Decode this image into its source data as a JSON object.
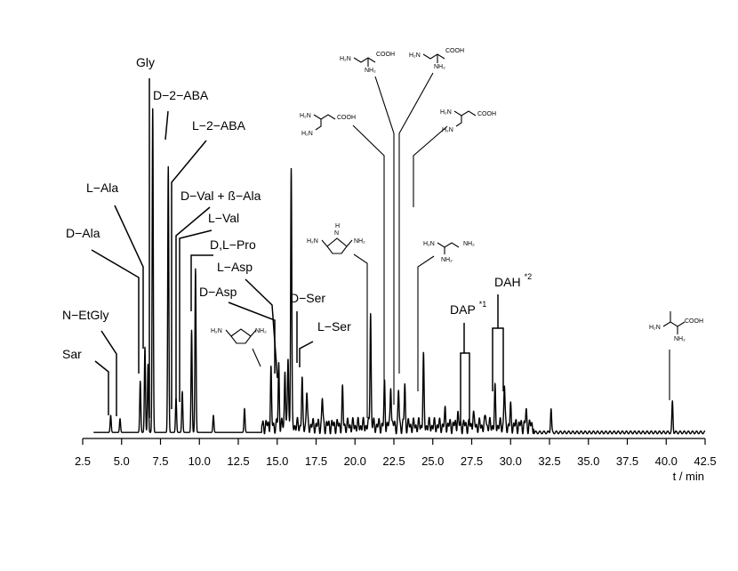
{
  "chart_data": {
    "type": "line",
    "x_axis": {
      "label": "t / min",
      "range": [
        2.5,
        42.5
      ],
      "ticks": [
        "2.5",
        "5.0",
        "7.5",
        "10.0",
        "12.5",
        "15.0",
        "17.5",
        "20.0",
        "22.5",
        "25.0",
        "27.5",
        "30.0",
        "32.5",
        "35.0",
        "37.5",
        "40.0",
        "42.5"
      ]
    },
    "y_axis": {
      "label": "",
      "ticks_shown": false,
      "range": [
        0,
        1
      ]
    },
    "grid": false,
    "legend": "none",
    "peaks": [
      {
        "t": 4.3,
        "h": 0.05
      },
      {
        "t": 4.9,
        "h": 0.04
      },
      {
        "t": 6.2,
        "h": 0.15
      },
      {
        "t": 6.5,
        "h": 0.25
      },
      {
        "t": 6.7,
        "h": 0.2
      },
      {
        "t": 7.0,
        "h": 0.95
      },
      {
        "t": 8.0,
        "h": 0.78
      },
      {
        "t": 8.5,
        "h": 0.1
      },
      {
        "t": 8.9,
        "h": 0.12
      },
      {
        "t": 9.5,
        "h": 0.3
      },
      {
        "t": 9.75,
        "h": 0.48
      },
      {
        "t": 10.9,
        "h": 0.05
      },
      {
        "t": 12.9,
        "h": 0.07
      },
      {
        "t": 14.6,
        "h": 0.16
      },
      {
        "t": 15.1,
        "h": 0.18
      },
      {
        "t": 15.5,
        "h": 0.17
      },
      {
        "t": 15.7,
        "h": 0.2
      },
      {
        "t": 15.9,
        "h": 0.76
      },
      {
        "t": 16.6,
        "h": 0.13
      },
      {
        "t": 16.9,
        "h": 0.1
      },
      {
        "t": 17.9,
        "h": 0.08
      },
      {
        "t": 19.2,
        "h": 0.1
      },
      {
        "t": 21.0,
        "h": 0.34
      },
      {
        "t": 21.9,
        "h": 0.12
      },
      {
        "t": 22.3,
        "h": 0.13
      },
      {
        "t": 22.8,
        "h": 0.1
      },
      {
        "t": 23.2,
        "h": 0.12
      },
      {
        "t": 24.4,
        "h": 0.2
      },
      {
        "t": 25.8,
        "h": 0.04
      },
      {
        "t": 26.6,
        "h": 0.04
      },
      {
        "t": 27.6,
        "h": 0.04
      },
      {
        "t": 28.4,
        "h": 0.03
      },
      {
        "t": 29.0,
        "h": 0.1
      },
      {
        "t": 29.6,
        "h": 0.12
      },
      {
        "t": 30.0,
        "h": 0.05
      },
      {
        "t": 31.0,
        "h": 0.04
      },
      {
        "t": 32.6,
        "h": 0.07
      },
      {
        "t": 40.4,
        "h": 0.09
      }
    ],
    "annotations": [
      {
        "text": "Sar",
        "t": 4.3,
        "sup": ""
      },
      {
        "text": "N−EtGly",
        "t": 4.9,
        "sup": ""
      },
      {
        "text": "D−Ala",
        "t": 6.2,
        "sup": ""
      },
      {
        "text": "L−Ala",
        "t": 6.5,
        "sup": ""
      },
      {
        "text": "Gly",
        "t": 7.0,
        "sup": ""
      },
      {
        "text": "D−2−ABA",
        "t": 8.0,
        "sup": ""
      },
      {
        "text": "L−2−ABA",
        "t": 8.5,
        "sup": ""
      },
      {
        "text": "D−Val + ß−Ala",
        "t": 8.9,
        "sup": ""
      },
      {
        "text": "L−Val",
        "t": 9.2,
        "sup": ""
      },
      {
        "text": "D,L−Pro",
        "t": 9.75,
        "sup": ""
      },
      {
        "text": "D−Asp",
        "t": 15.1,
        "sup": ""
      },
      {
        "text": "L−Asp",
        "t": 15.4,
        "sup": ""
      },
      {
        "text": "D−Ser",
        "t": 16.5,
        "sup": ""
      },
      {
        "text": "L−Ser",
        "t": 16.8,
        "sup": ""
      },
      {
        "text": "DAP",
        "t": 27.3,
        "sup": "*1"
      },
      {
        "text": "DAH",
        "t": 29.3,
        "sup": "*2"
      }
    ],
    "structure_labels": [
      "H₂N",
      "NH₂",
      "H",
      "N",
      "COOH"
    ]
  }
}
